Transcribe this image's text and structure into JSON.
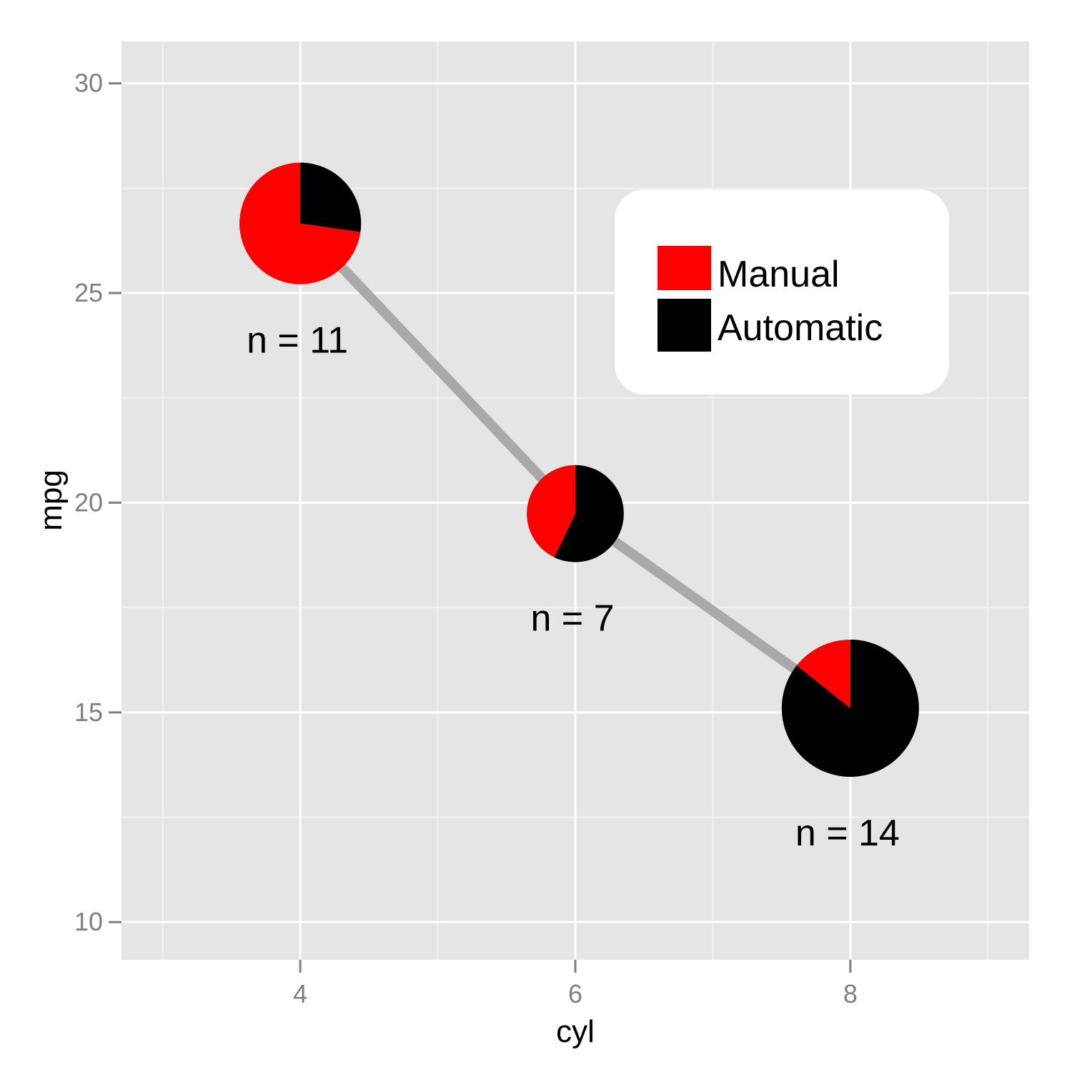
{
  "chart_data": {
    "type": "scatter",
    "xlabel": "cyl",
    "ylabel": "mpg",
    "xlim": [
      2.7,
      9.3
    ],
    "ylim": [
      9.1,
      31.0
    ],
    "x_ticks": [
      4,
      6,
      8
    ],
    "y_ticks": [
      10,
      15,
      20,
      25,
      30
    ],
    "x_tick_labels": [
      "4",
      "6",
      "8"
    ],
    "y_tick_labels": [
      "10",
      "15",
      "20",
      "25",
      "30"
    ],
    "grid": true,
    "legend_placement": "top-right",
    "line_color": "#a9a9a9",
    "series": [
      {
        "name": "Manual",
        "color": "#ff0000"
      },
      {
        "name": "Automatic",
        "color": "#000000"
      }
    ],
    "points": [
      {
        "x": 4,
        "y": 26.66,
        "n": 11,
        "label": "n = 11",
        "manual": 8,
        "automatic": 3
      },
      {
        "x": 6,
        "y": 19.74,
        "n": 7,
        "label": "n = 7",
        "manual": 3,
        "automatic": 4
      },
      {
        "x": 8,
        "y": 15.1,
        "n": 14,
        "label": "n = 14",
        "manual": 2,
        "automatic": 12
      }
    ]
  }
}
